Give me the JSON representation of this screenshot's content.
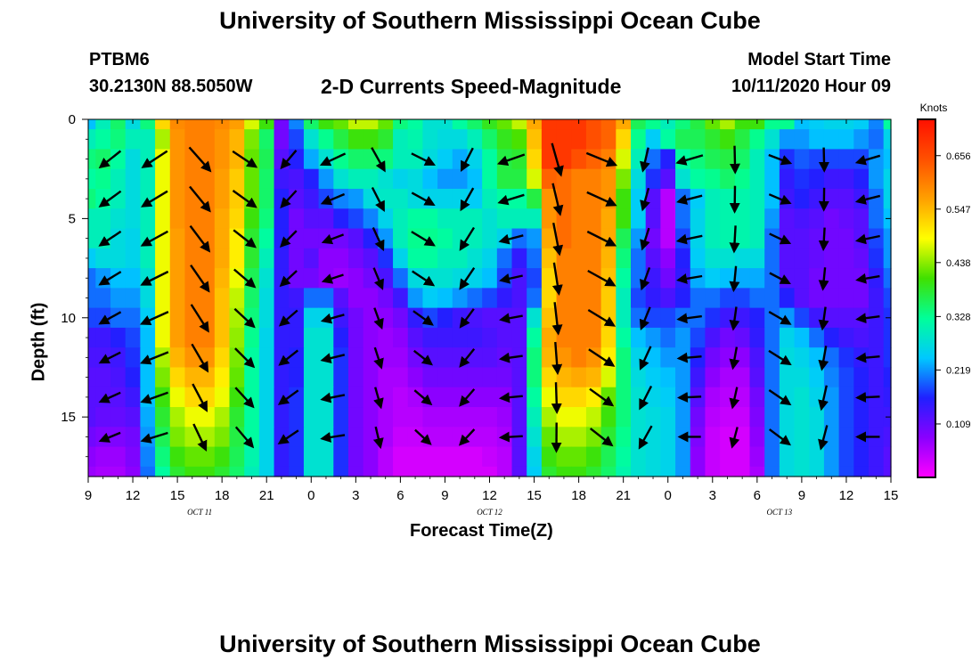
{
  "header": {
    "title": "University of Southern Mississippi Ocean Cube",
    "station_id": "PTBM6",
    "station_location": "30.2130N 88.5050W",
    "model_start_label": "Model Start Time",
    "model_start_value": "10/11/2020 Hour 09"
  },
  "footer": {
    "title": "University of Southern Mississippi Ocean Cube"
  },
  "chart_data": {
    "type": "heatmap",
    "title": "2-D Currents Speed-Magnitude",
    "xlabel": "Forecast Time(Z)",
    "ylabel": "Depth (ft)",
    "x_tick_labels": [
      "9",
      "12",
      "15",
      "18",
      "21",
      "0",
      "3",
      "6",
      "9",
      "12",
      "15",
      "18",
      "21",
      "0",
      "3",
      "6",
      "9",
      "12",
      "15"
    ],
    "x_ticks_hours": [
      0,
      3,
      6,
      9,
      12,
      15,
      18,
      21,
      24,
      27,
      30,
      33,
      36,
      39,
      42,
      45,
      48,
      51,
      54
    ],
    "xlim_hours": [
      0,
      54
    ],
    "date_labels": [
      {
        "text": "OCT 11",
        "hour": 7.5
      },
      {
        "text": "OCT 12",
        "hour": 27
      },
      {
        "text": "OCT 13",
        "hour": 46.5
      }
    ],
    "y_ticks": [
      0,
      5,
      10,
      15
    ],
    "ylim": [
      0,
      18
    ],
    "y_inverted": true,
    "colorbar": {
      "title": "Knots",
      "tick_labels": [
        "0.656",
        "0.547",
        "0.438",
        "0.328",
        "0.219",
        "0.109"
      ],
      "tick_values": [
        0.656,
        0.547,
        0.438,
        0.328,
        0.219,
        0.109
      ],
      "range": [
        0,
        0.73
      ],
      "colors": [
        "#ff00ff",
        "#8a00ff",
        "#2020ff",
        "#00c8ff",
        "#00ff9a",
        "#40e000",
        "#ffff00",
        "#ffa000",
        "#ff5000",
        "#ff1000"
      ]
    },
    "arrow_rows_depth": [
      2,
      4,
      6,
      8,
      10,
      12,
      14,
      16
    ],
    "speed_samples": {
      "hours": [
        0,
        1,
        2,
        3,
        4,
        5,
        6,
        7,
        8,
        9,
        10,
        11,
        12,
        13,
        14,
        15,
        16,
        17,
        18,
        19,
        20,
        21,
        22,
        23,
        24,
        25,
        26,
        27,
        28,
        29,
        30,
        31,
        32,
        33,
        34,
        35,
        36,
        37,
        38,
        39,
        40,
        41,
        42,
        43,
        44,
        45,
        46,
        47,
        48,
        49,
        50,
        51,
        52,
        53,
        54
      ],
      "depths": [
        0,
        1,
        2,
        3,
        4,
        5,
        6,
        7,
        8,
        9,
        10,
        11,
        12,
        13,
        14,
        15,
        16,
        17,
        18
      ],
      "values": [
        [
          0.24,
          0.3,
          0.35,
          0.27,
          0.34,
          0.52,
          0.59,
          0.6,
          0.6,
          0.59,
          0.57,
          0.47,
          0.4,
          0.1,
          0.21,
          0.35,
          0.4,
          0.42,
          0.46,
          0.46,
          0.42,
          0.34,
          0.32,
          0.28,
          0.28,
          0.32,
          0.35,
          0.39,
          0.42,
          0.46,
          0.56,
          0.68,
          0.68,
          0.68,
          0.65,
          0.63,
          0.56,
          0.36,
          0.33,
          0.3,
          0.34,
          0.37,
          0.42,
          0.45,
          0.4,
          0.4,
          0.33,
          0.33,
          0.24,
          0.25,
          0.26,
          0.26,
          0.25,
          0.21,
          0.32
        ],
        [
          0.3,
          0.32,
          0.34,
          0.3,
          0.3,
          0.45,
          0.58,
          0.6,
          0.6,
          0.58,
          0.55,
          0.43,
          0.35,
          0.1,
          0.18,
          0.28,
          0.33,
          0.37,
          0.4,
          0.4,
          0.38,
          0.3,
          0.31,
          0.28,
          0.27,
          0.27,
          0.3,
          0.35,
          0.39,
          0.41,
          0.54,
          0.68,
          0.68,
          0.68,
          0.65,
          0.63,
          0.52,
          0.33,
          0.25,
          0.32,
          0.36,
          0.36,
          0.38,
          0.4,
          0.37,
          0.33,
          0.28,
          0.22,
          0.22,
          0.24,
          0.24,
          0.24,
          0.22,
          0.2,
          0.26
        ],
        [
          0.34,
          0.35,
          0.32,
          0.27,
          0.3,
          0.48,
          0.58,
          0.6,
          0.6,
          0.58,
          0.55,
          0.42,
          0.36,
          0.12,
          0.16,
          0.23,
          0.28,
          0.33,
          0.35,
          0.35,
          0.34,
          0.3,
          0.3,
          0.27,
          0.25,
          0.23,
          0.26,
          0.32,
          0.37,
          0.38,
          0.52,
          0.68,
          0.68,
          0.65,
          0.63,
          0.6,
          0.47,
          0.3,
          0.2,
          0.16,
          0.32,
          0.34,
          0.36,
          0.37,
          0.35,
          0.3,
          0.24,
          0.17,
          0.19,
          0.18,
          0.18,
          0.18,
          0.18,
          0.22,
          0.24
        ],
        [
          0.32,
          0.33,
          0.3,
          0.27,
          0.3,
          0.48,
          0.58,
          0.6,
          0.6,
          0.57,
          0.53,
          0.42,
          0.35,
          0.14,
          0.13,
          0.16,
          0.22,
          0.28,
          0.3,
          0.3,
          0.28,
          0.26,
          0.27,
          0.24,
          0.22,
          0.22,
          0.24,
          0.32,
          0.37,
          0.37,
          0.47,
          0.63,
          0.62,
          0.6,
          0.6,
          0.58,
          0.43,
          0.27,
          0.17,
          0.12,
          0.28,
          0.32,
          0.33,
          0.35,
          0.33,
          0.3,
          0.24,
          0.15,
          0.17,
          0.16,
          0.14,
          0.14,
          0.16,
          0.22,
          0.26
        ],
        [
          0.34,
          0.32,
          0.3,
          0.27,
          0.3,
          0.48,
          0.58,
          0.6,
          0.6,
          0.57,
          0.53,
          0.42,
          0.35,
          0.16,
          0.12,
          0.14,
          0.18,
          0.21,
          0.22,
          0.27,
          0.29,
          0.29,
          0.27,
          0.26,
          0.26,
          0.26,
          0.25,
          0.3,
          0.32,
          0.32,
          0.37,
          0.58,
          0.62,
          0.6,
          0.6,
          0.58,
          0.4,
          0.25,
          0.12,
          0.05,
          0.2,
          0.25,
          0.3,
          0.31,
          0.31,
          0.3,
          0.24,
          0.14,
          0.16,
          0.14,
          0.12,
          0.12,
          0.14,
          0.2,
          0.26
        ],
        [
          0.3,
          0.3,
          0.28,
          0.27,
          0.3,
          0.48,
          0.58,
          0.6,
          0.6,
          0.56,
          0.52,
          0.4,
          0.34,
          0.16,
          0.1,
          0.12,
          0.12,
          0.16,
          0.18,
          0.21,
          0.26,
          0.3,
          0.32,
          0.32,
          0.3,
          0.3,
          0.3,
          0.28,
          0.3,
          0.3,
          0.3,
          0.58,
          0.62,
          0.6,
          0.6,
          0.56,
          0.4,
          0.25,
          0.12,
          0.05,
          0.2,
          0.26,
          0.3,
          0.31,
          0.31,
          0.3,
          0.22,
          0.12,
          0.13,
          0.12,
          0.1,
          0.11,
          0.12,
          0.2,
          0.24
        ],
        [
          0.3,
          0.3,
          0.27,
          0.26,
          0.3,
          0.48,
          0.57,
          0.6,
          0.6,
          0.56,
          0.5,
          0.38,
          0.32,
          0.16,
          0.1,
          0.1,
          0.1,
          0.1,
          0.12,
          0.16,
          0.22,
          0.3,
          0.33,
          0.33,
          0.32,
          0.3,
          0.3,
          0.28,
          0.26,
          0.2,
          0.22,
          0.56,
          0.62,
          0.6,
          0.6,
          0.56,
          0.36,
          0.22,
          0.1,
          0.05,
          0.18,
          0.26,
          0.3,
          0.31,
          0.31,
          0.3,
          0.2,
          0.12,
          0.12,
          0.11,
          0.1,
          0.1,
          0.12,
          0.18,
          0.22
        ],
        [
          0.25,
          0.27,
          0.27,
          0.26,
          0.3,
          0.48,
          0.57,
          0.6,
          0.6,
          0.56,
          0.5,
          0.38,
          0.3,
          0.15,
          0.1,
          0.12,
          0.08,
          0.08,
          0.1,
          0.12,
          0.17,
          0.26,
          0.32,
          0.32,
          0.3,
          0.3,
          0.28,
          0.26,
          0.2,
          0.15,
          0.2,
          0.54,
          0.6,
          0.6,
          0.6,
          0.55,
          0.34,
          0.2,
          0.12,
          0.08,
          0.16,
          0.25,
          0.28,
          0.28,
          0.27,
          0.27,
          0.2,
          0.12,
          0.12,
          0.11,
          0.1,
          0.1,
          0.11,
          0.17,
          0.22
        ],
        [
          0.2,
          0.22,
          0.24,
          0.24,
          0.28,
          0.48,
          0.57,
          0.6,
          0.6,
          0.55,
          0.48,
          0.36,
          0.28,
          0.15,
          0.1,
          0.1,
          0.08,
          0.07,
          0.08,
          0.1,
          0.13,
          0.2,
          0.27,
          0.28,
          0.28,
          0.27,
          0.26,
          0.24,
          0.18,
          0.13,
          0.18,
          0.52,
          0.6,
          0.6,
          0.6,
          0.54,
          0.32,
          0.2,
          0.14,
          0.1,
          0.15,
          0.23,
          0.25,
          0.24,
          0.23,
          0.23,
          0.2,
          0.12,
          0.12,
          0.1,
          0.1,
          0.1,
          0.1,
          0.15,
          0.2
        ],
        [
          0.2,
          0.2,
          0.22,
          0.22,
          0.27,
          0.48,
          0.57,
          0.6,
          0.6,
          0.54,
          0.46,
          0.35,
          0.27,
          0.15,
          0.14,
          0.2,
          0.2,
          0.12,
          0.08,
          0.08,
          0.1,
          0.14,
          0.22,
          0.25,
          0.24,
          0.22,
          0.2,
          0.18,
          0.15,
          0.13,
          0.2,
          0.52,
          0.6,
          0.6,
          0.6,
          0.53,
          0.3,
          0.18,
          0.15,
          0.13,
          0.16,
          0.2,
          0.2,
          0.18,
          0.18,
          0.2,
          0.2,
          0.16,
          0.12,
          0.1,
          0.1,
          0.1,
          0.1,
          0.14,
          0.18
        ],
        [
          0.18,
          0.18,
          0.2,
          0.2,
          0.25,
          0.48,
          0.57,
          0.6,
          0.6,
          0.54,
          0.45,
          0.34,
          0.27,
          0.15,
          0.15,
          0.26,
          0.26,
          0.14,
          0.1,
          0.08,
          0.08,
          0.1,
          0.15,
          0.18,
          0.16,
          0.14,
          0.13,
          0.12,
          0.12,
          0.12,
          0.28,
          0.54,
          0.6,
          0.6,
          0.6,
          0.53,
          0.3,
          0.2,
          0.18,
          0.18,
          0.2,
          0.2,
          0.17,
          0.14,
          0.14,
          0.16,
          0.2,
          0.22,
          0.18,
          0.14,
          0.12,
          0.12,
          0.12,
          0.14,
          0.17
        ],
        [
          0.14,
          0.14,
          0.16,
          0.18,
          0.24,
          0.48,
          0.57,
          0.6,
          0.6,
          0.54,
          0.44,
          0.33,
          0.26,
          0.15,
          0.15,
          0.28,
          0.28,
          0.16,
          0.1,
          0.08,
          0.07,
          0.08,
          0.12,
          0.14,
          0.14,
          0.14,
          0.14,
          0.13,
          0.12,
          0.12,
          0.32,
          0.56,
          0.6,
          0.6,
          0.6,
          0.52,
          0.32,
          0.24,
          0.22,
          0.2,
          0.22,
          0.18,
          0.13,
          0.1,
          0.11,
          0.15,
          0.2,
          0.26,
          0.24,
          0.2,
          0.16,
          0.14,
          0.13,
          0.14,
          0.17
        ],
        [
          0.13,
          0.13,
          0.14,
          0.17,
          0.24,
          0.45,
          0.55,
          0.58,
          0.58,
          0.52,
          0.43,
          0.32,
          0.26,
          0.15,
          0.16,
          0.28,
          0.28,
          0.17,
          0.1,
          0.08,
          0.07,
          0.07,
          0.1,
          0.12,
          0.12,
          0.12,
          0.12,
          0.12,
          0.11,
          0.12,
          0.34,
          0.55,
          0.58,
          0.6,
          0.58,
          0.5,
          0.34,
          0.26,
          0.24,
          0.22,
          0.22,
          0.16,
          0.1,
          0.08,
          0.08,
          0.13,
          0.2,
          0.27,
          0.26,
          0.24,
          0.2,
          0.17,
          0.15,
          0.14,
          0.17
        ],
        [
          0.12,
          0.12,
          0.13,
          0.16,
          0.24,
          0.43,
          0.52,
          0.55,
          0.55,
          0.5,
          0.42,
          0.32,
          0.26,
          0.15,
          0.16,
          0.28,
          0.28,
          0.17,
          0.1,
          0.08,
          0.06,
          0.06,
          0.08,
          0.1,
          0.1,
          0.1,
          0.1,
          0.1,
          0.1,
          0.12,
          0.34,
          0.52,
          0.55,
          0.56,
          0.55,
          0.47,
          0.34,
          0.27,
          0.25,
          0.24,
          0.22,
          0.14,
          0.08,
          0.06,
          0.06,
          0.12,
          0.2,
          0.27,
          0.27,
          0.25,
          0.21,
          0.18,
          0.16,
          0.14,
          0.16
        ],
        [
          0.12,
          0.12,
          0.12,
          0.14,
          0.24,
          0.4,
          0.48,
          0.52,
          0.52,
          0.48,
          0.4,
          0.32,
          0.26,
          0.15,
          0.17,
          0.28,
          0.28,
          0.17,
          0.1,
          0.08,
          0.06,
          0.05,
          0.06,
          0.08,
          0.08,
          0.08,
          0.08,
          0.08,
          0.08,
          0.12,
          0.32,
          0.48,
          0.52,
          0.52,
          0.5,
          0.42,
          0.34,
          0.28,
          0.26,
          0.25,
          0.22,
          0.12,
          0.06,
          0.05,
          0.05,
          0.1,
          0.2,
          0.27,
          0.28,
          0.26,
          0.22,
          0.18,
          0.16,
          0.14,
          0.15
        ],
        [
          0.12,
          0.11,
          0.11,
          0.12,
          0.23,
          0.38,
          0.45,
          0.48,
          0.48,
          0.45,
          0.38,
          0.32,
          0.26,
          0.15,
          0.17,
          0.28,
          0.28,
          0.17,
          0.1,
          0.08,
          0.06,
          0.05,
          0.05,
          0.06,
          0.06,
          0.06,
          0.06,
          0.06,
          0.07,
          0.12,
          0.3,
          0.45,
          0.48,
          0.48,
          0.46,
          0.4,
          0.34,
          0.28,
          0.27,
          0.26,
          0.22,
          0.1,
          0.05,
          0.04,
          0.04,
          0.09,
          0.2,
          0.27,
          0.28,
          0.27,
          0.22,
          0.18,
          0.16,
          0.14,
          0.14
        ],
        [
          0.1,
          0.09,
          0.09,
          0.1,
          0.22,
          0.36,
          0.43,
          0.45,
          0.45,
          0.43,
          0.37,
          0.32,
          0.26,
          0.15,
          0.17,
          0.28,
          0.28,
          0.17,
          0.1,
          0.08,
          0.06,
          0.04,
          0.04,
          0.05,
          0.05,
          0.05,
          0.05,
          0.05,
          0.06,
          0.12,
          0.28,
          0.42,
          0.45,
          0.45,
          0.43,
          0.38,
          0.33,
          0.28,
          0.27,
          0.26,
          0.22,
          0.09,
          0.04,
          0.03,
          0.03,
          0.08,
          0.2,
          0.27,
          0.28,
          0.27,
          0.22,
          0.18,
          0.16,
          0.14,
          0.13
        ],
        [
          0.08,
          0.07,
          0.07,
          0.09,
          0.21,
          0.34,
          0.4,
          0.42,
          0.42,
          0.4,
          0.36,
          0.31,
          0.26,
          0.15,
          0.17,
          0.28,
          0.28,
          0.17,
          0.1,
          0.08,
          0.05,
          0.03,
          0.03,
          0.03,
          0.03,
          0.03,
          0.03,
          0.04,
          0.05,
          0.12,
          0.26,
          0.4,
          0.42,
          0.42,
          0.4,
          0.36,
          0.32,
          0.28,
          0.27,
          0.26,
          0.22,
          0.08,
          0.04,
          0.03,
          0.03,
          0.07,
          0.2,
          0.27,
          0.28,
          0.27,
          0.22,
          0.18,
          0.16,
          0.14,
          0.12
        ],
        [
          0.07,
          0.06,
          0.06,
          0.08,
          0.2,
          0.32,
          0.38,
          0.4,
          0.4,
          0.38,
          0.35,
          0.3,
          0.26,
          0.15,
          0.17,
          0.28,
          0.28,
          0.17,
          0.1,
          0.08,
          0.05,
          0.03,
          0.03,
          0.03,
          0.03,
          0.03,
          0.03,
          0.03,
          0.05,
          0.12,
          0.25,
          0.38,
          0.4,
          0.4,
          0.38,
          0.35,
          0.31,
          0.28,
          0.27,
          0.26,
          0.22,
          0.08,
          0.04,
          0.03,
          0.03,
          0.06,
          0.2,
          0.27,
          0.28,
          0.27,
          0.22,
          0.18,
          0.16,
          0.14,
          0.12
        ]
      ]
    }
  }
}
